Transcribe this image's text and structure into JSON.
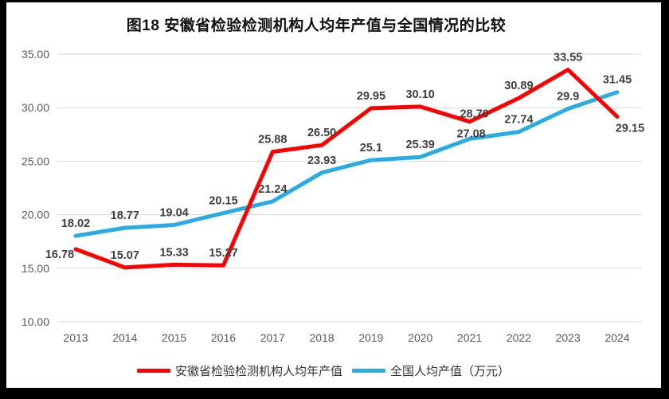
{
  "page": {
    "background": "#FFFFFF",
    "frame_color": "#000000"
  },
  "chart_data": {
    "type": "line",
    "title": "图18 安徽省检验检测机构人均年产值与全国情况的比较",
    "categories": [
      "2013",
      "2014",
      "2015",
      "2016",
      "2017",
      "2018",
      "2019",
      "2020",
      "2021",
      "2022",
      "2023",
      "2024"
    ],
    "series": [
      {
        "name": "安徽省检验检测机构人均年产值",
        "color": "#FE0000",
        "values": [
          16.78,
          15.07,
          15.33,
          15.27,
          25.88,
          26.5,
          29.95,
          30.1,
          28.7,
          30.89,
          33.55,
          29.15
        ],
        "labels": [
          "16.78",
          "15.07",
          "15.33",
          "15.27",
          "25.88",
          "26.50",
          "29.95",
          "30.10",
          "28.70",
          "30.89",
          "33.55",
          "29.15"
        ]
      },
      {
        "name": "全国人均产值（万元）",
        "color": "#29ACE3",
        "values": [
          18.02,
          18.77,
          19.04,
          20.15,
          21.24,
          23.93,
          25.1,
          25.39,
          27.08,
          27.74,
          29.9,
          31.45
        ],
        "labels": [
          "18.02",
          "18.77",
          "19.04",
          "20.15",
          "21.24",
          "23.93",
          "25.1",
          "25.39",
          "27.08",
          "27.74",
          "29.9",
          "31.45"
        ]
      }
    ],
    "y_ticks": [
      "35.00",
      "30.00",
      "25.00",
      "20.00",
      "15.00",
      "10.00"
    ],
    "ylim": [
      10,
      35
    ],
    "xlabel": "",
    "ylabel": "",
    "grid": true,
    "legend_position": "bottom",
    "grid_color": "#D9D9D9",
    "axis_label_color": "#595959",
    "data_label_color": "#3F3F3F",
    "label_offsets": {
      "0": {
        "0": [
          -20,
          11
        ],
        "8": [
          6,
          -5
        ],
        "11": [
          16,
          19
        ]
      },
      "1": {
        "8": [
          2,
          -2
        ]
      }
    }
  }
}
